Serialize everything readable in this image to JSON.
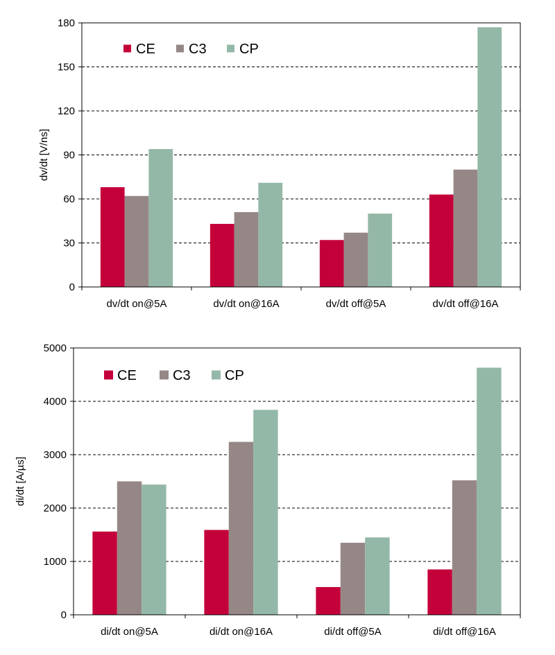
{
  "series_colors": {
    "CE": "#c4003a",
    "C3": "#968787",
    "CP": "#94b8a7"
  },
  "chart_data": [
    {
      "type": "bar",
      "title": "",
      "xlabel": "",
      "ylabel": "dv/dt [V/ns]",
      "ylim": [
        0,
        180
      ],
      "yticks": [
        0,
        30,
        60,
        90,
        120,
        150,
        180
      ],
      "grid": "horizontal dashed",
      "legend": "top-left",
      "categories": [
        "dv/dt on@5A",
        "dv/dt on@16A",
        "dv/dt off@5A",
        "dv/dt off@16A"
      ],
      "series": [
        {
          "name": "CE",
          "color": "#c4003a",
          "values": [
            68,
            43,
            32,
            63
          ]
        },
        {
          "name": "C3",
          "color": "#968787",
          "values": [
            62,
            51,
            37,
            80
          ]
        },
        {
          "name": "CP",
          "color": "#94b8a7",
          "values": [
            94,
            71,
            50,
            177
          ]
        }
      ]
    },
    {
      "type": "bar",
      "title": "",
      "xlabel": "",
      "ylabel": "di/dt [A/µs]",
      "ylim": [
        0,
        5000
      ],
      "yticks": [
        0,
        1000,
        2000,
        3000,
        4000,
        5000
      ],
      "grid": "horizontal dashed",
      "legend": "top-left",
      "categories": [
        "di/dt on@5A",
        "di/dt on@16A",
        "di/dt off@5A",
        "di/dt off@16A"
      ],
      "series": [
        {
          "name": "CE",
          "color": "#c4003a",
          "values": [
            1560,
            1590,
            520,
            850
          ]
        },
        {
          "name": "C3",
          "color": "#968787",
          "values": [
            2500,
            3240,
            1350,
            2520
          ]
        },
        {
          "name": "CP",
          "color": "#94b8a7",
          "values": [
            2440,
            3840,
            1450,
            4630
          ]
        }
      ]
    }
  ]
}
